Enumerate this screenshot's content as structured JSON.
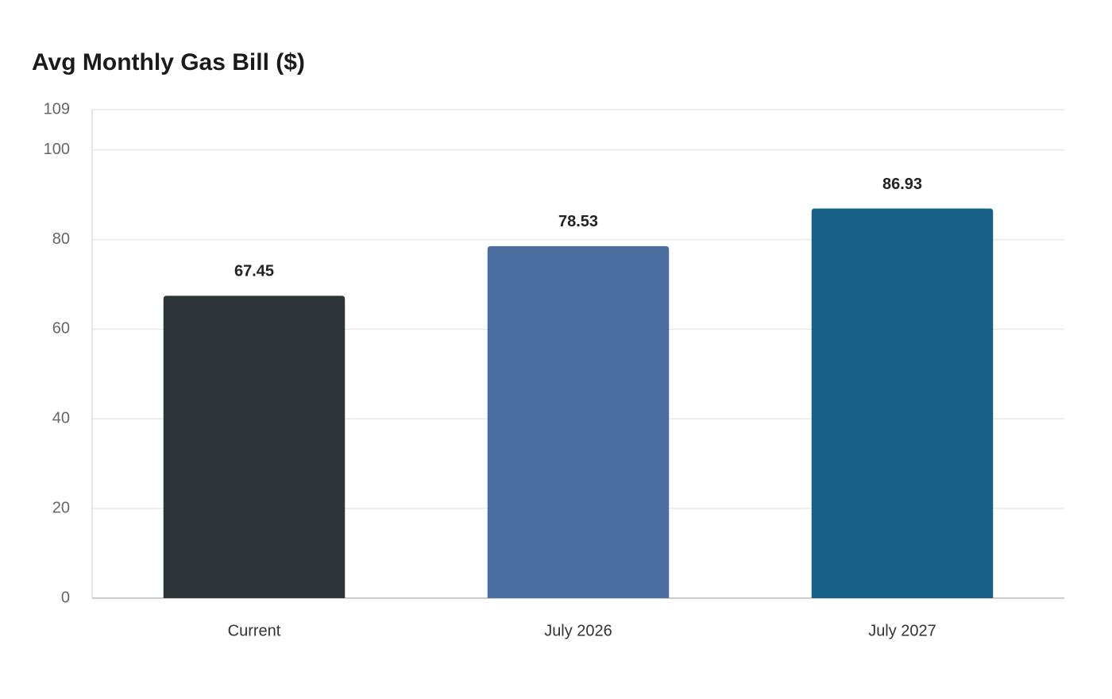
{
  "chart_data": {
    "type": "bar",
    "title": "Avg Monthly Gas Bill ($)",
    "categories": [
      "Current",
      "July 2026",
      "July 2027"
    ],
    "values": [
      67.45,
      78.53,
      86.93
    ],
    "colors": [
      "#2e3538",
      "#4a6ea0",
      "#176087"
    ],
    "ylim": [
      0,
      109
    ],
    "yticks": [
      0,
      20,
      40,
      60,
      80,
      100,
      109
    ],
    "grid": true
  }
}
